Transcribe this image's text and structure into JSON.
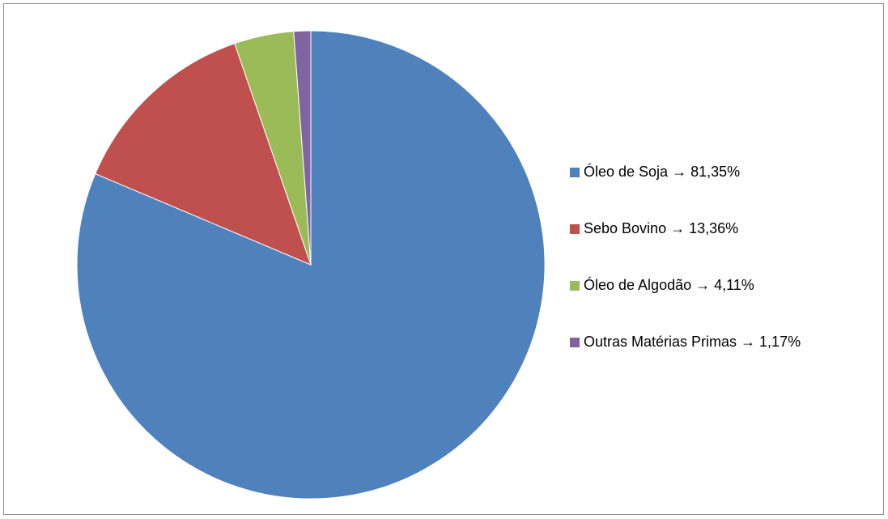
{
  "chart_data": {
    "type": "pie",
    "title": "",
    "start_angle": "12-o'clock",
    "direction": "clockwise",
    "legend_position": "right",
    "slices": [
      {
        "label": "Óleo de Soja → 81,35%",
        "category": "Óleo de Soja",
        "value": 81.35,
        "color": "#4F81BD"
      },
      {
        "label": "Sebo Bovino → 13,36%",
        "category": "Sebo Bovino",
        "value": 13.36,
        "color": "#C0504D"
      },
      {
        "label": "Óleo de Algodão → 4,11%",
        "category": "Óleo de Algodão",
        "value": 4.11,
        "color": "#9BBB59"
      },
      {
        "label": "Outras Matérias Primas → 1,17%",
        "category": "Outras Matérias Primas",
        "value": 1.17,
        "color": "#8064A2"
      }
    ]
  }
}
